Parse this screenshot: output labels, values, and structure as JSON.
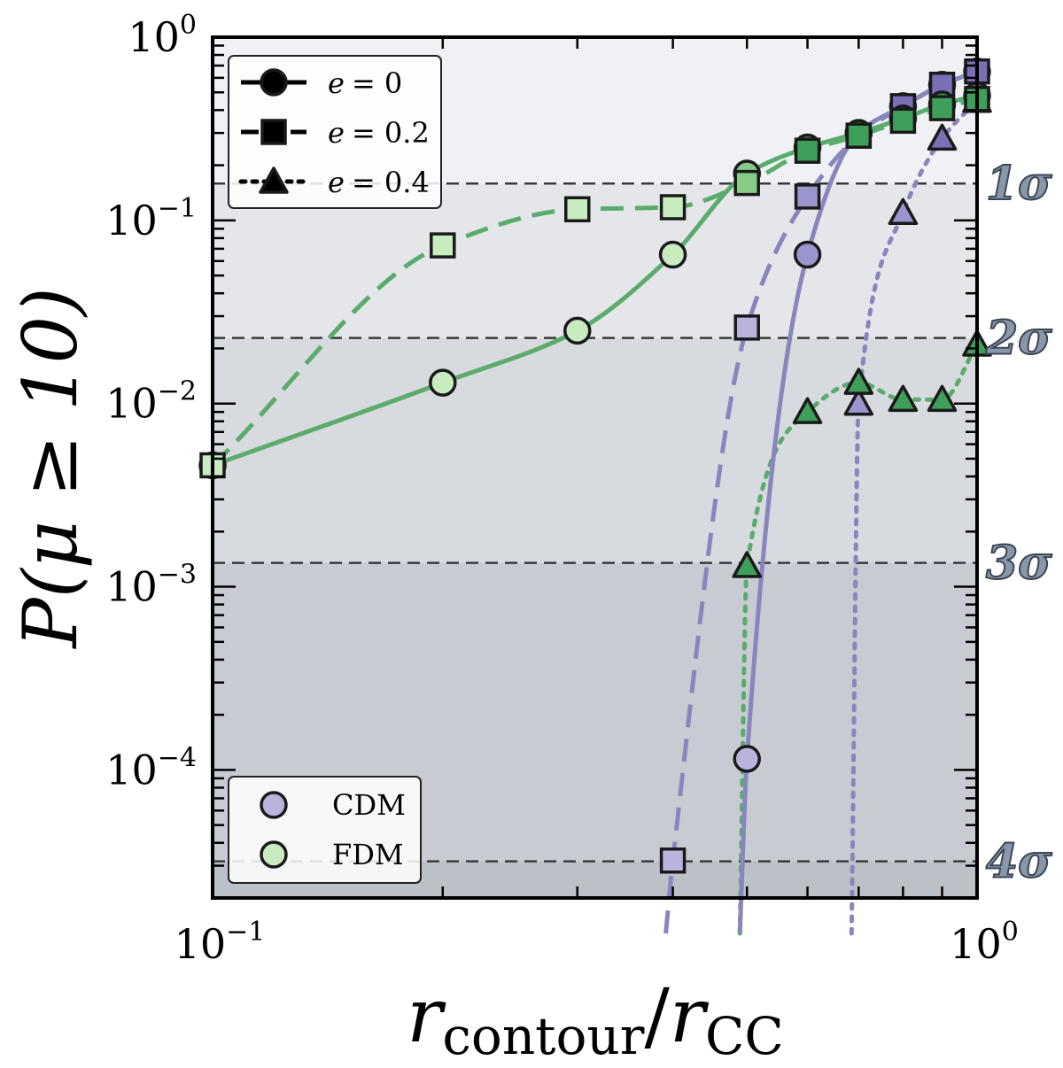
{
  "chart_data": {
    "type": "line",
    "xscale": "log",
    "yscale": "log",
    "xlim": [
      0.1,
      1.0
    ],
    "ylim": [
      2e-05,
      1.0
    ],
    "xlabel": "r_contour / r_CC",
    "ylabel": "P(μ ≥ 10)",
    "x_ticks": [
      {
        "value": 0.1,
        "base": "10",
        "exp": "−1"
      },
      {
        "value": 1.0,
        "base": "10",
        "exp": "0"
      }
    ],
    "y_ticks": [
      {
        "value": 1.0,
        "base": "10",
        "exp": "0"
      },
      {
        "value": 0.1,
        "base": "10",
        "exp": "−1"
      },
      {
        "value": 0.01,
        "base": "10",
        "exp": "−2"
      },
      {
        "value": 0.001,
        "base": "10",
        "exp": "−3"
      },
      {
        "value": 0.0001,
        "base": "10",
        "exp": "−4"
      }
    ],
    "sigma_levels": [
      {
        "label": "1σ",
        "value": 0.159
      },
      {
        "label": "2σ",
        "value": 0.0228
      },
      {
        "label": "3σ",
        "value": 0.00135
      },
      {
        "label": "4σ",
        "value": 3.17e-05
      }
    ],
    "legend_linestyle": {
      "placement": "top-left",
      "entries": [
        {
          "label": "e = 0",
          "e_symbol": "e",
          "value_text": "= 0",
          "dash": "solid",
          "marker": "circle"
        },
        {
          "label": "e = 0.2",
          "e_symbol": "e",
          "value_text": "= 0.2",
          "dash": "dashed",
          "marker": "square"
        },
        {
          "label": "e = 0.4",
          "e_symbol": "e",
          "value_text": "= 0.4",
          "dash": "dotted",
          "marker": "triangle"
        }
      ]
    },
    "legend_model": {
      "placement": "bottom-left",
      "entries": [
        {
          "label": "CDM",
          "color": "#b8b4dc"
        },
        {
          "label": "FDM",
          "color": "#c8ecc0"
        }
      ]
    },
    "colors": {
      "cdm_line": "#8886bc",
      "fdm_line": "#5aab6c",
      "cdm_marker_light": "#b8b4dc",
      "cdm_marker_mid": "#9a95cc",
      "cdm_marker_dark": "#7b70b8",
      "fdm_marker_light": "#c8ecc0",
      "fdm_marker_mid": "#86cc86",
      "fdm_marker_dark": "#3e9f5a",
      "band_1": "#f0f1f4",
      "band_2": "#e4e6ea",
      "band_3": "#d7dade",
      "band_4": "#c8ccd2",
      "band_5": "#bcc1c7"
    },
    "series": [
      {
        "model": "FDM",
        "e": 0,
        "dash": "solid",
        "marker": "circle",
        "x": [
          0.1,
          0.2,
          0.3,
          0.4,
          0.5,
          0.6,
          0.7,
          0.8,
          0.9,
          1.0
        ],
        "y": [
          0.0046,
          0.013,
          0.025,
          0.065,
          0.18,
          0.25,
          0.3,
          0.36,
          0.43,
          0.48
        ]
      },
      {
        "model": "FDM",
        "e": 0.2,
        "dash": "dashed",
        "marker": "square",
        "x": [
          0.1,
          0.2,
          0.3,
          0.4,
          0.5,
          0.6,
          0.7,
          0.8,
          0.9,
          1.0
        ],
        "y": [
          0.0046,
          0.073,
          0.115,
          0.118,
          0.16,
          0.24,
          0.29,
          0.35,
          0.41,
          0.46
        ]
      },
      {
        "model": "FDM",
        "e": 0.4,
        "dash": "dotted",
        "marker": "triangle",
        "x": [
          0.5,
          0.6,
          0.7,
          0.8,
          0.9,
          1.0
        ],
        "y": [
          0.0013,
          0.009,
          0.013,
          0.0105,
          0.0105,
          0.021
        ]
      },
      {
        "model": "CDM",
        "e": 0,
        "dash": "solid",
        "marker": "circle",
        "x": [
          0.5,
          0.6,
          0.7,
          0.8,
          0.9,
          1.0
        ],
        "y": [
          0.000115,
          0.065,
          0.3,
          0.42,
          0.55,
          0.65
        ]
      },
      {
        "model": "CDM",
        "e": 0.2,
        "dash": "dashed",
        "marker": "square",
        "x": [
          0.4,
          0.5,
          0.6,
          0.7,
          0.8,
          0.9,
          1.0
        ],
        "y": [
          3.2e-05,
          0.026,
          0.135,
          0.29,
          0.42,
          0.55,
          0.65
        ]
      },
      {
        "model": "CDM",
        "e": 0.4,
        "dash": "dotted",
        "marker": "triangle",
        "x": [
          0.7,
          0.8,
          0.9,
          1.0
        ],
        "y": [
          0.01,
          0.11,
          0.28,
          0.45
        ]
      }
    ]
  }
}
